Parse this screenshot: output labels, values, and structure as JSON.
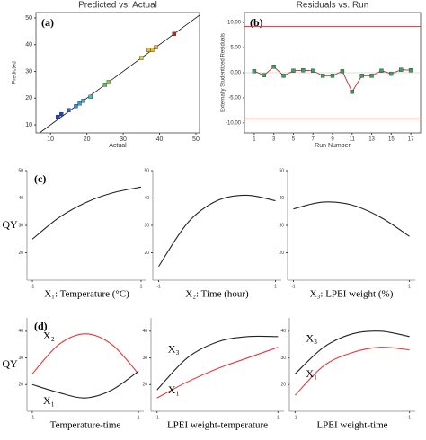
{
  "chart_data": [
    {
      "type": "scatter",
      "panel_label": "(a)",
      "title": "Predicted vs. Actual",
      "xlabel": "Actual",
      "ylabel": "Predicted",
      "x": [
        12,
        13,
        15,
        17,
        18,
        19,
        21,
        25,
        26,
        35,
        37,
        38,
        39,
        44
      ],
      "values": [
        13,
        14,
        15.5,
        17,
        18,
        19,
        20.5,
        25,
        26,
        35,
        38,
        38,
        39,
        44
      ],
      "colors": [
        "#1f3fbf",
        "#1f3fbf",
        "#1f5fcf",
        "#2f8fdf",
        "#2f9fdf",
        "#3fafcf",
        "#3fbfbf",
        "#5fbf5f",
        "#7fcf3f",
        "#e0d020",
        "#e8c020",
        "#e8c020",
        "#f0b020",
        "#d02020"
      ],
      "xlim": [
        6,
        51
      ],
      "ylim": [
        7,
        52
      ],
      "xticks": [
        10,
        20,
        30,
        40,
        50
      ],
      "yticks": [
        10,
        20,
        30,
        40,
        50
      ]
    },
    {
      "type": "line",
      "panel_label": "(b)",
      "title": "Residuals vs. Run",
      "xlabel": "Run Number",
      "ylabel": "Externally Studentized Residuals",
      "x": [
        1,
        2,
        3,
        4,
        5,
        6,
        7,
        8,
        9,
        10,
        11,
        12,
        13,
        14,
        15,
        16,
        17
      ],
      "values": [
        0.3,
        -0.5,
        1.2,
        -0.6,
        0.4,
        0.5,
        0.4,
        -0.6,
        -0.6,
        0.3,
        -3.8,
        -0.6,
        -0.6,
        0.4,
        -0.2,
        0.6,
        0.5
      ],
      "color": "#b03030",
      "marker_color": "#3aa060",
      "limit_lines": [
        9.2,
        -9.2
      ],
      "limit_color": "#e03030",
      "xlim": [
        0,
        18
      ],
      "ylim": [
        -12,
        12
      ],
      "xticks": [
        1,
        3,
        5,
        7,
        9,
        11,
        13,
        15,
        17
      ],
      "yticks": [
        {
          "value": -10,
          "label": "-10.00"
        },
        {
          "value": -5,
          "label": "-5.00"
        },
        {
          "value": 0,
          "label": "0.00"
        },
        {
          "value": 5,
          "label": "5.00"
        },
        {
          "value": 10,
          "label": "10.00"
        }
      ]
    },
    {
      "type": "curve",
      "panel_label": "(c)",
      "ylabel": "QY",
      "xlabel": "X₁: Temperature (°C)",
      "x": [
        -1,
        -0.5,
        0,
        0.5,
        1
      ],
      "series": [
        {
          "name": null,
          "color": "#222222",
          "values": [
            25,
            33,
            38.5,
            42,
            44
          ]
        }
      ],
      "xlim": [
        -1.1,
        1.1
      ],
      "ylim": [
        10,
        50
      ],
      "xticks": [
        -1,
        1
      ],
      "yticks": [
        20,
        30,
        40,
        50
      ]
    },
    {
      "type": "curve",
      "xlabel": "X₂: Time (hour)",
      "x": [
        -1,
        -0.5,
        0,
        0.5,
        1
      ],
      "series": [
        {
          "name": null,
          "color": "#222222",
          "values": [
            15,
            31,
            39,
            41,
            39
          ]
        }
      ],
      "xlim": [
        -1.1,
        1.1
      ],
      "ylim": [
        10,
        50
      ],
      "xticks": [
        -1,
        1
      ],
      "yticks": [
        20,
        30,
        40,
        50
      ]
    },
    {
      "type": "curve",
      "xlabel": "X₃: LPEI weight (%)",
      "x": [
        -1,
        -0.5,
        0,
        0.5,
        1
      ],
      "series": [
        {
          "name": null,
          "color": "#222222",
          "values": [
            36,
            38.5,
            37.5,
            33,
            26
          ]
        }
      ],
      "xlim": [
        -1.1,
        1.1
      ],
      "ylim": [
        10,
        50
      ],
      "xticks": [
        -1,
        1
      ],
      "yticks": [
        20,
        30,
        40,
        50
      ]
    },
    {
      "type": "curve",
      "panel_label": "(d)",
      "ylabel": "QY",
      "xlabel": "Temperature-time",
      "x": [
        -1,
        -0.5,
        0,
        0.5,
        1
      ],
      "series": [
        {
          "name": "X₂",
          "color": "#e03a3a",
          "values": [
            24,
            35,
            39,
            35,
            24
          ]
        },
        {
          "name": "X₁",
          "color": "#222222",
          "values": [
            20,
            17,
            15,
            18,
            25
          ]
        }
      ],
      "xlim": [
        -1.1,
        1.1
      ],
      "ylim": [
        10,
        45
      ],
      "xticks": [
        -1,
        1
      ],
      "yticks": [
        20,
        30,
        40
      ]
    },
    {
      "type": "curve",
      "xlabel": "LPEI weight-temperature",
      "x": [
        -1,
        -0.5,
        0,
        0.5,
        1
      ],
      "series": [
        {
          "name": "X₃",
          "color": "#222222",
          "values": [
            18,
            30,
            36,
            38,
            38
          ]
        },
        {
          "name": "X₁",
          "color": "#e03a3a",
          "values": [
            15,
            21,
            26,
            30,
            34
          ]
        }
      ],
      "xlim": [
        -1.1,
        1.1
      ],
      "ylim": [
        10,
        45
      ],
      "xticks": [
        -1,
        1
      ],
      "yticks": [
        20,
        30,
        40
      ]
    },
    {
      "type": "curve",
      "xlabel": "LPEI weight-time",
      "x": [
        -1,
        -0.5,
        0,
        0.5,
        1
      ],
      "series": [
        {
          "name": "X₃",
          "color": "#222222",
          "values": [
            24,
            34,
            39,
            40,
            38
          ]
        },
        {
          "name": "X₁",
          "color": "#e03a3a",
          "values": [
            16,
            27,
            32,
            34,
            33
          ]
        }
      ],
      "xlim": [
        -1.1,
        1.1
      ],
      "ylim": [
        10,
        45
      ],
      "xticks": [
        -1,
        1
      ],
      "yticks": [
        20,
        30,
        40
      ]
    }
  ]
}
